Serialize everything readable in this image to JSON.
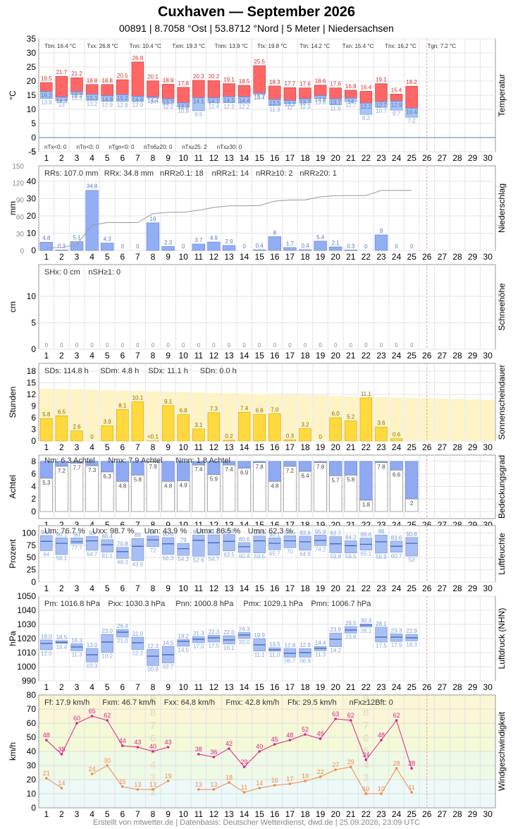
{
  "header": {
    "title": "Cuxhaven  —  September 2026",
    "subtitle": "00891  |  8.7058 °Ost  |  53.8712 °Nord  |  5 Meter  |  Niedersachsen"
  },
  "footer": {
    "text": "Erstellt von mtwetter.de | Datenbasis: Deutscher Wetterdienst, dwd.de | 25.09.2026, 23:09 UTC"
  },
  "colors": {
    "temp_max": "#ff6666",
    "temp_min": "#a8c4f4",
    "temp_mean": "#6a8fe0",
    "precip": "#92aef4",
    "snow": "#e6e6e6",
    "sun": "#ffd93d",
    "sun_possible": "#fdf3c4",
    "cloud": "#8fa9f2",
    "humidity": "#a8bff5",
    "pressure": "#a8bff5",
    "wind_gust": "#e0208a",
    "wind_mean": "#f5884a",
    "today_line": "#f0a0a0"
  },
  "chart_data": [
    {
      "type": "bar",
      "panel": "Temperatur",
      "ylabel": "°C",
      "ylim": [
        -5,
        35
      ],
      "yticks": [
        "35",
        "30",
        "25",
        "20",
        "15",
        "10",
        "5",
        "0",
        "-5"
      ],
      "x": [
        1,
        2,
        3,
        4,
        5,
        6,
        7,
        8,
        9,
        10,
        11,
        12,
        13,
        14,
        15,
        16,
        17,
        18,
        19,
        20,
        21,
        22,
        23,
        24,
        25,
        26,
        27,
        28,
        29,
        30
      ],
      "tmax": [
        19.5,
        21.7,
        21.2,
        18.8,
        18.8,
        20.5,
        26.8,
        20.1,
        18.9,
        17.8,
        20.3,
        20.2,
        19.1,
        18.5,
        25.5,
        18.3,
        17.7,
        17.6,
        18.6,
        17.6,
        16.8,
        16.4,
        19.1,
        15.4,
        18.2
      ],
      "tmean": [
        16.3,
        14.3,
        16.2,
        15.3,
        14.8,
        15.2,
        14.6,
        14.4,
        13.7,
        12.3,
        14.1,
        14.1,
        14.5,
        14.4,
        15.7,
        13.5,
        13.1,
        13.7,
        14.8,
        13.7,
        14.0,
        12.2,
        12.7,
        12.9,
        10.4
      ],
      "tmin": [
        13.8,
        13.0,
        15.3,
        13.2,
        12.9,
        12.8,
        12.9,
        14.0,
        12.2,
        10.8,
        9.5,
        12.4,
        12.3,
        12.2,
        15.4,
        11.3,
        12.0,
        12.3,
        13.8,
        11.6,
        12.7,
        8.2,
        10.7,
        9.7,
        7.2
      ],
      "stats_top": [
        "Ttm: 16.4 °C",
        "Txx: 26.8 °C",
        "Tnn: 10.4 °C",
        "Txm: 19.3 °C",
        "Tnm: 13.9 °C",
        "Ttx: 19.8 °C",
        "Ttn: 14.2 °C",
        "Txn: 15.4 °C",
        "Tnx: 16.2 °C",
        "Tgn: 7.2 °C"
      ],
      "stats_bottom": [
        "nTx<0: 0",
        "nTn<0: 0",
        "nTgn<0: 0",
        "nTn6≥20: 0",
        "nTx≥25: 2",
        "nTx≥30: 0"
      ]
    },
    {
      "type": "bar",
      "panel": "Niederschlag",
      "ylabel": "mm",
      "ylim": [
        0,
        40
      ],
      "yticks": [
        "40",
        "30",
        "20",
        "10",
        "0"
      ],
      "yticks_cum": [
        "150",
        "120",
        "90",
        "60",
        "30",
        "0"
      ],
      "values": [
        4.8,
        0.3,
        5.1,
        34.8,
        4.3,
        0,
        0,
        16.0,
        2.3,
        0,
        3.7,
        4.9,
        2.9,
        0,
        0.4,
        8.0,
        1.7,
        0.4,
        5.4,
        2.1,
        0.3,
        0,
        9.0,
        0,
        0
      ],
      "cumulative": [
        4.8,
        5.1,
        10.2,
        45.0,
        49.3,
        49.3,
        49.3,
        65.3,
        67.6,
        67.6,
        71.3,
        76.2,
        79.1,
        79.1,
        79.5,
        87.5,
        89.2,
        89.6,
        95.0,
        97.1,
        97.4,
        97.4,
        106.4,
        106.4,
        106.4
      ],
      "stats": [
        "RRs: 107.0 mm",
        "RRx: 34.8 mm",
        "nRR≥0.1: 18",
        "nRR≥1: 14",
        "nRR≥10: 2",
        "nRR≥20: 1"
      ]
    },
    {
      "type": "bar",
      "panel": "Schneehöhe",
      "ylabel": "cm",
      "ylim": [
        0,
        14
      ],
      "yticks": [
        "10",
        "5",
        "0"
      ],
      "values": [
        0,
        0,
        0,
        0,
        0,
        0,
        0,
        0,
        0,
        0,
        0,
        0,
        0,
        0,
        0,
        0,
        0,
        0,
        0,
        0,
        0,
        0,
        0,
        0,
        0
      ],
      "stats": [
        "SHx: 0 cm",
        "nSH≥1: 0"
      ]
    },
    {
      "type": "bar",
      "panel": "Sonnenscheindauer",
      "ylabel": "Stunden",
      "ylim": [
        0,
        20
      ],
      "yticks": [
        "18",
        "15",
        "12",
        "9",
        "6",
        "3",
        "0"
      ],
      "values": [
        5.8,
        6.5,
        2.6,
        0,
        3.9,
        8.1,
        10.1,
        0.05,
        9.1,
        6.8,
        3.1,
        7.3,
        0.2,
        7.4,
        6.8,
        7.0,
        0.3,
        3.2,
        0,
        6.0,
        5.2,
        11.1,
        3.6,
        0.6,
        0
      ],
      "labels": [
        "5.8",
        "6.5",
        "2.6",
        "0",
        "3.9",
        "8.1",
        "10.1",
        "<0.1",
        "9.1",
        "6.8",
        "3.1",
        "7.3",
        "0.2",
        "7.4",
        "6.8",
        "7.0",
        "0.3",
        "3.2",
        "0",
        "6.0",
        "5.2",
        "11.1",
        "3.6",
        "0.6",
        ""
      ],
      "possible": [
        13.5,
        13.4,
        13.3,
        13.2,
        13.1,
        13.0,
        12.9,
        12.8,
        12.7,
        12.6,
        12.5,
        12.4,
        12.3,
        12.2,
        12.1,
        12.0,
        11.9,
        11.8,
        11.7,
        11.6,
        11.5,
        11.4,
        11.3,
        11.2,
        11.1,
        11.0,
        10.9,
        10.8,
        10.7,
        10.6
      ],
      "stats": [
        "SDs: 114.8 h",
        "SDm: 4.8 h",
        "SDx: 11.1 h",
        "SDn: 0.0 h"
      ]
    },
    {
      "type": "bar",
      "panel": "Bedeckungsgrad",
      "ylabel": "Achtel",
      "ylim": [
        0,
        9
      ],
      "yticks": [
        "8",
        "6",
        "4",
        "2",
        "0"
      ],
      "values": [
        5.3,
        7.2,
        7.7,
        7.3,
        6.3,
        4.8,
        5.8,
        7.9,
        4.8,
        4.9,
        7.4,
        5.9,
        7.4,
        6.9,
        7.8,
        4.8,
        7.2,
        6.4,
        7.8,
        5.7,
        5.8,
        1.8,
        7.8,
        6.6,
        2.0
      ],
      "stats": [
        "Nm: 6.3 Achtel",
        "Nmx: 7.9 Achtel",
        "Nmn: 1.8 Achtel"
      ]
    },
    {
      "type": "bar",
      "panel": "Luftfeuchte",
      "ylabel": "Prozent",
      "ylim": [
        0,
        115
      ],
      "yticks": [
        "100",
        "75",
        "50",
        "25",
        "0"
      ],
      "max": [
        94.9,
        90.1,
        90.0,
        93.0,
        86.4,
        70.8,
        89.0,
        94.0,
        90.6,
        79.0,
        95.5,
        96.2,
        96.9,
        80.6,
        93.9,
        90.1,
        94.5,
        93.6,
        95.9,
        92.7,
        84.2,
        89.6,
        96.0,
        83.6,
        90.8
      ],
      "mean": [
        83,
        79,
        82,
        84,
        76,
        62,
        73,
        86,
        78,
        68,
        85,
        80,
        83,
        72,
        84,
        79,
        84,
        82,
        85,
        78,
        74,
        77,
        82,
        73,
        79
      ],
      "min": [
        64.0,
        56.1,
        77.7,
        64.7,
        61.1,
        48.3,
        43.9,
        72.0,
        56.3,
        54.3,
        52.6,
        54.7,
        63.5,
        60.4,
        59.5,
        65.7,
        70.0,
        64.9,
        74.2,
        59.8,
        59.5,
        65.1,
        58.9,
        60.7,
        53.0
      ],
      "stats": [
        "Um: 76.7 %",
        "Uxx: 98.7 %",
        "Unn: 43.9 %",
        "Umx: 86.5 %",
        "Umn: 62.3 %"
      ]
    },
    {
      "type": "bar",
      "panel": "Luftdruck (NHN)",
      "ylabel": "hPa",
      "ylim": [
        990,
        1050
      ],
      "yticks": [
        "1050",
        "1040",
        "1030",
        "1020",
        "1010",
        "1000",
        "990"
      ],
      "max": [
        1019.0,
        1018.5,
        1016.3,
        1013.0,
        1023.0,
        1026.4,
        1021.0,
        1012.3,
        1014.5,
        1019.2,
        1021.3,
        1022.3,
        1022.0,
        1024.3,
        1019.9,
        1013.5,
        1012.8,
        1012.9,
        1014.4,
        1023.9,
        1028.5,
        1030.3,
        1028.1,
        1023.3,
        1022.9
      ],
      "mean": [
        1016.5,
        1017.3,
        1014.0,
        1008.5,
        1017.5,
        1024.5,
        1017.0,
        1007.5,
        1008.5,
        1018.0,
        1019.5,
        1020.5,
        1019.0,
        1022.5,
        1015.5,
        1012.0,
        1009.5,
        1010.0,
        1013.0,
        1019.5,
        1026.0,
        1029.5,
        1021.0,
        1021.0,
        1020.5
      ],
      "min": [
        1012.0,
        1016.4,
        1011.3,
        1003.3,
        1010.2,
        1021.0,
        1012.2,
        1000.8,
        1002.7,
        1014.5,
        1017.0,
        1017.5,
        1016.1,
        1020.0,
        1011.1,
        1011.0,
        1006.7,
        1006.8,
        1011.3,
        1014.2,
        1023.8,
        1028.1,
        1017.5,
        1017.9,
        1018.3
      ],
      "stats": [
        "Pm: 1016.8 hPa",
        "Pxx: 1030.3 hPa",
        "Pnn: 1000.8 hPa",
        "Pmx: 1029.1 hPa",
        "Pmn: 1006.7 hPa"
      ]
    },
    {
      "type": "line",
      "panel": "Windgeschwindigkeit",
      "ylabel": "km/h",
      "ylim": [
        0,
        80
      ],
      "yticks": [
        "80",
        "70",
        "60",
        "50",
        "40",
        "30",
        "20",
        "10",
        "0"
      ],
      "gusts": [
        48,
        38,
        60,
        65,
        62,
        44,
        43,
        40,
        43,
        null,
        38,
        36,
        42,
        29,
        40,
        45,
        48,
        52,
        49,
        63,
        62,
        34,
        48,
        62,
        28
      ],
      "mean": [
        21,
        14,
        null,
        24,
        30,
        15,
        13,
        13,
        19,
        null,
        13,
        13,
        18,
        11,
        14,
        16,
        17,
        19,
        22,
        27,
        29,
        10,
        10,
        28,
        11
      ],
      "gust_labels": [
        "48",
        "38",
        "60",
        "65",
        "62",
        "44",
        "43",
        "40",
        "43",
        "",
        "38",
        "36",
        "42",
        "29",
        "40",
        "45",
        "48",
        "52",
        "49",
        "63",
        "62",
        "34",
        "48",
        "62",
        "28"
      ],
      "mean_labels": [
        "21",
        "14",
        "",
        "24",
        "30",
        "15",
        "13",
        "13",
        "19",
        "",
        "13",
        "13",
        "18",
        "11",
        "14",
        "16",
        "17",
        "19",
        "22",
        "27",
        "29",
        "10",
        "10",
        "28",
        "11"
      ],
      "beaufort": [
        "9",
        "8",
        "7",
        "6",
        "5",
        "4",
        "3",
        "2"
      ],
      "stats": [
        "Ff: 17.9 km/h",
        "Fxm: 46.7 km/h",
        "Fxx: 64.8 km/h",
        "Fmx: 42.8 km/h",
        "Ffx: 29.5 km/h",
        "nFx≥12Bft: 0"
      ]
    }
  ]
}
